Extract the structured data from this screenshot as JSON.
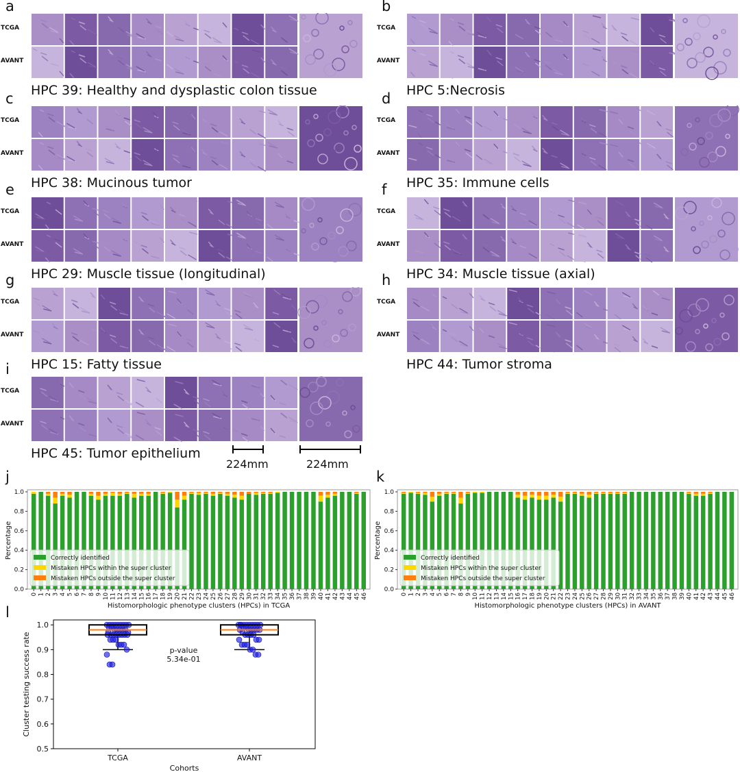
{
  "panels": [
    {
      "letter": "a",
      "title": "HPC 39: Healthy and dysplastic colon tissue"
    },
    {
      "letter": "b",
      "title": "HPC 5:Necrosis"
    },
    {
      "letter": "c",
      "title": "HPC 38: Mucinous tumor"
    },
    {
      "letter": "d",
      "title": "HPC 35: Immune cells"
    },
    {
      "letter": "e",
      "title": "HPC 29: Muscle tissue (longitudinal)"
    },
    {
      "letter": "f",
      "title": "HPC 34: Muscle tissue (axial)"
    },
    {
      "letter": "g",
      "title": "HPC 15: Fatty tissue"
    },
    {
      "letter": "h",
      "title": "HPC 44: Tumor stroma"
    },
    {
      "letter": "i",
      "title": "HPC 45: Tumor epithelium"
    }
  ],
  "row_labels": {
    "top": "TCGA",
    "bottom": "AVANT"
  },
  "scale_bars": [
    "224mm",
    "224mm"
  ],
  "tissue_colors": [
    "#a98fc6",
    "#8e70b4",
    "#b9a2d2",
    "#7c5aa4",
    "#9c82c0",
    "#c6b4dc",
    "#876aae",
    "#b19ad0",
    "#6e4e98",
    "#a58ac6"
  ],
  "chart_letters": {
    "j": "j",
    "k": "k",
    "l": "l"
  },
  "legend": {
    "correct": "Correctly identified",
    "within": "Mistaken HPCs within the super cluster",
    "outside": "Mistaken HPCs outside the super cluster",
    "colors": {
      "correct": "#2ca02c",
      "within": "#ffd700",
      "outside": "#ff7f0e"
    }
  },
  "chart_data": [
    {
      "type": "bar",
      "id": "j",
      "stacked": true,
      "ylabel": "Percentage",
      "xlabel": "Histomorphologic phenotype clusters (HPCs) in TCGA",
      "ylim": [
        0,
        1
      ],
      "yticks": [
        "0.0",
        "0.2",
        "0.4",
        "0.6",
        "0.8",
        "1.0"
      ],
      "legend_position": "lower-left",
      "categories": [
        "0",
        "1",
        "2",
        "3",
        "4",
        "5",
        "6",
        "7",
        "8",
        "9",
        "10",
        "11",
        "12",
        "13",
        "14",
        "15",
        "16",
        "17",
        "18",
        "19",
        "20",
        "21",
        "22",
        "23",
        "24",
        "25",
        "26",
        "27",
        "28",
        "29",
        "30",
        "31",
        "32",
        "33",
        "34",
        "35",
        "36",
        "37",
        "38",
        "39",
        "40",
        "41",
        "42",
        "43",
        "44",
        "45",
        "46"
      ],
      "series": [
        {
          "name": "Correctly identified",
          "values": [
            0.98,
            1.0,
            0.96,
            0.88,
            0.96,
            0.94,
            1.0,
            1.0,
            0.96,
            0.92,
            0.96,
            0.96,
            0.96,
            0.98,
            0.94,
            0.96,
            0.96,
            1.0,
            0.98,
            0.99,
            0.84,
            0.92,
            0.98,
            0.97,
            0.98,
            0.96,
            0.98,
            0.96,
            0.94,
            0.92,
            0.98,
            0.97,
            0.98,
            0.98,
            0.99,
            1.0,
            1.0,
            1.0,
            1.0,
            1.0,
            0.9,
            0.94,
            0.96,
            1.0,
            1.0,
            0.98,
            1.0
          ]
        },
        {
          "name": "Mistaken HPCs within the super cluster",
          "values": [
            0.02,
            0.0,
            0.02,
            0.06,
            0.02,
            0.03,
            0.0,
            0.0,
            0.02,
            0.04,
            0.02,
            0.03,
            0.02,
            0.01,
            0.04,
            0.02,
            0.02,
            0.0,
            0.01,
            0.01,
            0.08,
            0.04,
            0.01,
            0.02,
            0.01,
            0.02,
            0.01,
            0.02,
            0.03,
            0.04,
            0.0,
            0.02,
            0.01,
            0.01,
            0.01,
            0.0,
            0.0,
            0.0,
            0.0,
            0.0,
            0.06,
            0.03,
            0.02,
            0.0,
            0.0,
            0.01,
            0.0
          ]
        },
        {
          "name": "Mistaken HPCs outside the super cluster",
          "values": [
            0.0,
            0.0,
            0.02,
            0.06,
            0.02,
            0.03,
            0.0,
            0.0,
            0.02,
            0.04,
            0.02,
            0.01,
            0.02,
            0.01,
            0.02,
            0.02,
            0.02,
            0.0,
            0.01,
            0.0,
            0.08,
            0.04,
            0.01,
            0.01,
            0.01,
            0.02,
            0.01,
            0.02,
            0.03,
            0.04,
            0.02,
            0.01,
            0.01,
            0.01,
            0.0,
            0.0,
            0.0,
            0.0,
            0.0,
            0.0,
            0.04,
            0.03,
            0.02,
            0.0,
            0.0,
            0.01,
            0.0
          ]
        }
      ]
    },
    {
      "type": "bar",
      "id": "k",
      "stacked": true,
      "ylabel": "Percentage",
      "xlabel": "Histomorphologic phenotype clusters (HPCs) in AVANT",
      "ylim": [
        0,
        1
      ],
      "yticks": [
        "0.0",
        "0.2",
        "0.4",
        "0.6",
        "0.8",
        "1.0"
      ],
      "legend_position": "lower-left",
      "categories": [
        "0",
        "1",
        "2",
        "3",
        "4",
        "5",
        "6",
        "7",
        "8",
        "9",
        "10",
        "11",
        "12",
        "13",
        "14",
        "15",
        "16",
        "17",
        "18",
        "19",
        "20",
        "21",
        "22",
        "23",
        "24",
        "25",
        "26",
        "27",
        "28",
        "29",
        "30",
        "31",
        "32",
        "33",
        "34",
        "35",
        "36",
        "37",
        "38",
        "39",
        "40",
        "41",
        "42",
        "43",
        "44",
        "45",
        "46"
      ],
      "series": [
        {
          "name": "Correctly identified",
          "values": [
            0.98,
            0.99,
            0.98,
            0.97,
            0.9,
            0.96,
            0.98,
            0.98,
            0.88,
            0.98,
            0.99,
            0.99,
            1.0,
            1.0,
            1.0,
            1.0,
            0.94,
            0.92,
            0.94,
            0.92,
            0.92,
            0.94,
            0.9,
            0.98,
            0.98,
            0.96,
            0.94,
            0.98,
            0.98,
            0.98,
            0.98,
            0.98,
            1.0,
            1.0,
            1.0,
            1.0,
            1.0,
            1.0,
            1.0,
            1.0,
            0.98,
            0.96,
            0.96,
            0.98,
            1.0,
            1.0,
            1.0
          ]
        },
        {
          "name": "Mistaken HPCs within the super cluster",
          "values": [
            0.01,
            0.01,
            0.01,
            0.02,
            0.05,
            0.02,
            0.01,
            0.01,
            0.06,
            0.01,
            0.01,
            0.01,
            0.0,
            0.0,
            0.0,
            0.0,
            0.03,
            0.04,
            0.03,
            0.04,
            0.04,
            0.03,
            0.05,
            0.01,
            0.01,
            0.02,
            0.03,
            0.01,
            0.01,
            0.01,
            0.01,
            0.01,
            0.0,
            0.0,
            0.0,
            0.0,
            0.0,
            0.0,
            0.0,
            0.0,
            0.01,
            0.02,
            0.02,
            0.01,
            0.0,
            0.0,
            0.0
          ]
        },
        {
          "name": "Mistaken HPCs outside the super cluster",
          "values": [
            0.01,
            0.0,
            0.01,
            0.01,
            0.05,
            0.02,
            0.01,
            0.01,
            0.06,
            0.01,
            0.0,
            0.0,
            0.0,
            0.0,
            0.0,
            0.0,
            0.03,
            0.04,
            0.03,
            0.04,
            0.04,
            0.03,
            0.05,
            0.01,
            0.01,
            0.02,
            0.03,
            0.01,
            0.01,
            0.01,
            0.01,
            0.01,
            0.0,
            0.0,
            0.0,
            0.0,
            0.0,
            0.0,
            0.0,
            0.0,
            0.01,
            0.02,
            0.02,
            0.01,
            0.0,
            0.0,
            0.0
          ]
        }
      ]
    },
    {
      "type": "box",
      "id": "l",
      "ylabel": "Cluster testing success rate",
      "xlabel": "Cohorts",
      "ylim": [
        0.5,
        1.02
      ],
      "yticks": [
        "0.5",
        "0.6",
        "0.7",
        "0.8",
        "0.9",
        "1.0"
      ],
      "categories": [
        "TCGA",
        "AVANT"
      ],
      "annotation": "p-value\n5.34e-01",
      "boxes": [
        {
          "name": "TCGA",
          "q1": 0.96,
          "median": 0.98,
          "q3": 1.0,
          "whisker_low": 0.9,
          "whisker_high": 1.0,
          "points": [
            1.0,
            1.0,
            1.0,
            1.0,
            1.0,
            1.0,
            1.0,
            1.0,
            1.0,
            0.99,
            0.99,
            0.98,
            0.98,
            0.98,
            0.98,
            0.98,
            0.97,
            0.97,
            0.96,
            0.96,
            0.96,
            0.96,
            0.96,
            0.96,
            0.96,
            0.96,
            0.94,
            0.94,
            0.94,
            0.92,
            0.92,
            0.92,
            0.9,
            0.88,
            0.84,
            0.84
          ]
        },
        {
          "name": "AVANT",
          "q1": 0.96,
          "median": 0.98,
          "q3": 1.0,
          "whisker_low": 0.9,
          "whisker_high": 1.0,
          "points": [
            1.0,
            1.0,
            1.0,
            1.0,
            1.0,
            1.0,
            1.0,
            1.0,
            1.0,
            1.0,
            0.99,
            0.99,
            0.98,
            0.98,
            0.98,
            0.98,
            0.98,
            0.98,
            0.97,
            0.96,
            0.96,
            0.96,
            0.96,
            0.94,
            0.94,
            0.94,
            0.92,
            0.92,
            0.92,
            0.9,
            0.9,
            0.88,
            0.88
          ]
        }
      ]
    }
  ]
}
